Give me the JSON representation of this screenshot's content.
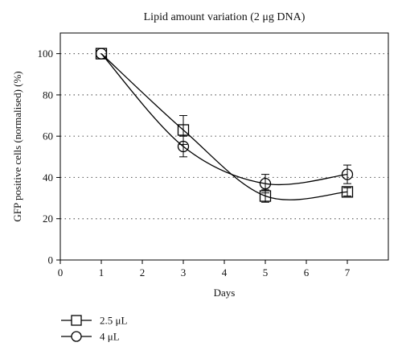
{
  "chart_data": {
    "type": "line",
    "title": "Lipid amount variation (2 μg DNA)",
    "xlabel": "Days",
    "ylabel": "GFP positive cells (normalised) (%)",
    "xlim": [
      0,
      8
    ],
    "ylim": [
      0,
      110
    ],
    "xticks": [
      0,
      1,
      2,
      3,
      4,
      5,
      6,
      7
    ],
    "yticks": [
      0,
      20,
      40,
      60,
      80,
      100
    ],
    "grid": "horizontal-dotted",
    "legend_position": "bottom-left",
    "series": [
      {
        "name": "2.5 μL",
        "marker": "square",
        "color": "#000000",
        "x": [
          1,
          3,
          5,
          7
        ],
        "y": [
          100,
          63,
          31,
          33
        ],
        "yerr": [
          0,
          7,
          3,
          2
        ]
      },
      {
        "name": "4 μL",
        "marker": "circle",
        "color": "#000000",
        "x": [
          1,
          3,
          5,
          7
        ],
        "y": [
          100,
          55,
          37,
          41.5
        ],
        "yerr": [
          0,
          5,
          4.5,
          4.5
        ]
      }
    ]
  }
}
